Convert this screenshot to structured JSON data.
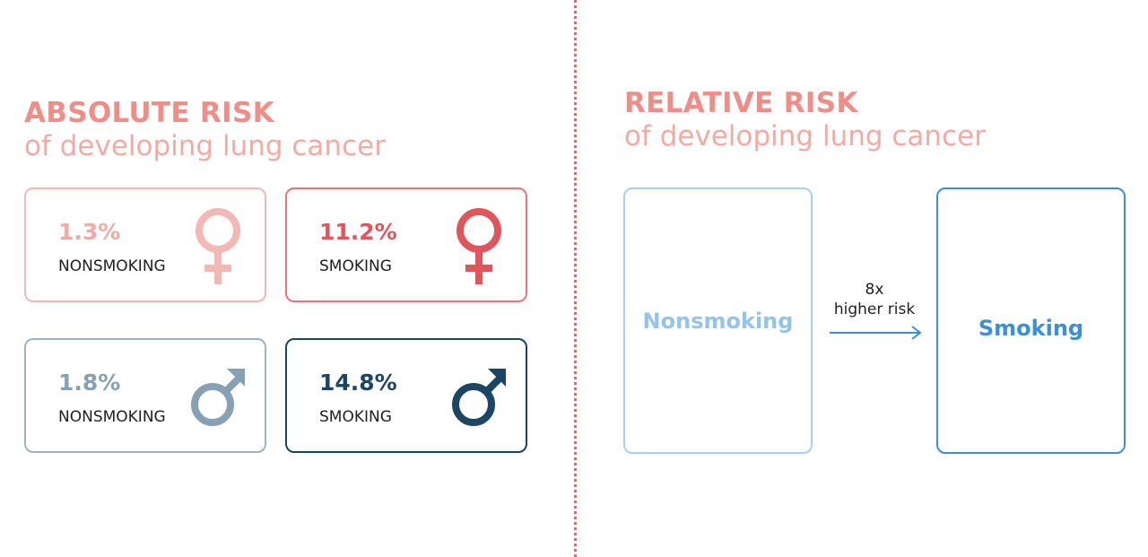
{
  "absolute": {
    "title": "ABSOLUTE RISK",
    "subtitle": "of developing lung cancer",
    "cards": [
      {
        "value": "1.3%",
        "label": "NONSMOKING",
        "symbol": "female-icon",
        "color": "#f4b8b4"
      },
      {
        "value": "11.2%",
        "label": "SMOKING",
        "symbol": "female-icon",
        "color": "#e0555b"
      },
      {
        "value": "1.8%",
        "label": "NONSMOKING",
        "symbol": "male-icon",
        "color": "#86a0b4"
      },
      {
        "value": "14.8%",
        "label": "SMOKING",
        "symbol": "male-icon",
        "color": "#1a4563"
      }
    ]
  },
  "relative": {
    "title": "RELATIVE RISK",
    "subtitle": "of developing lung cancer",
    "nonsmoking_label": "Nonsmoking",
    "smoking_label": "Smoking",
    "multiplier": "8x",
    "multiplier_text": "higher risk"
  },
  "colors": {
    "heading": "#ef8d86",
    "divider": "#e06b6b",
    "relative_light": "#a9cfee",
    "relative_dark": "#3b8fd6"
  }
}
